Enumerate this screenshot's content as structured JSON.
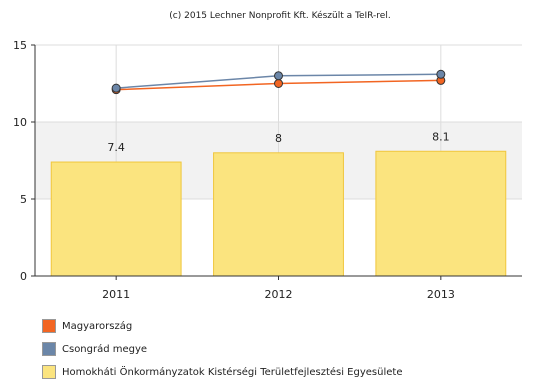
{
  "chart_data": {
    "type": "bar",
    "title": "(c) 2015 Lechner Nonprofit Kft. Készült a TeIR-rel.",
    "categories": [
      "2011",
      "2012",
      "2013"
    ],
    "ylim": [
      0,
      15
    ],
    "yticks": [
      0,
      5,
      10,
      15
    ],
    "series": [
      {
        "name": "Magyarország",
        "type": "line",
        "color": "#f26522",
        "values": [
          12.1,
          12.5,
          12.7
        ]
      },
      {
        "name": "Csongrád megye",
        "type": "line",
        "color": "#6b86a8",
        "values": [
          12.2,
          13.0,
          13.1
        ]
      },
      {
        "name": "Homokháti Önkormányzatok Kistérségi Területfejlesztési Egyesülete",
        "type": "bar",
        "color": "#fbe47f",
        "values": [
          7.4,
          8,
          8.1
        ],
        "labels": [
          "7.4",
          "8",
          "8.1"
        ]
      }
    ],
    "grid": true,
    "legend": "bottom-left"
  }
}
